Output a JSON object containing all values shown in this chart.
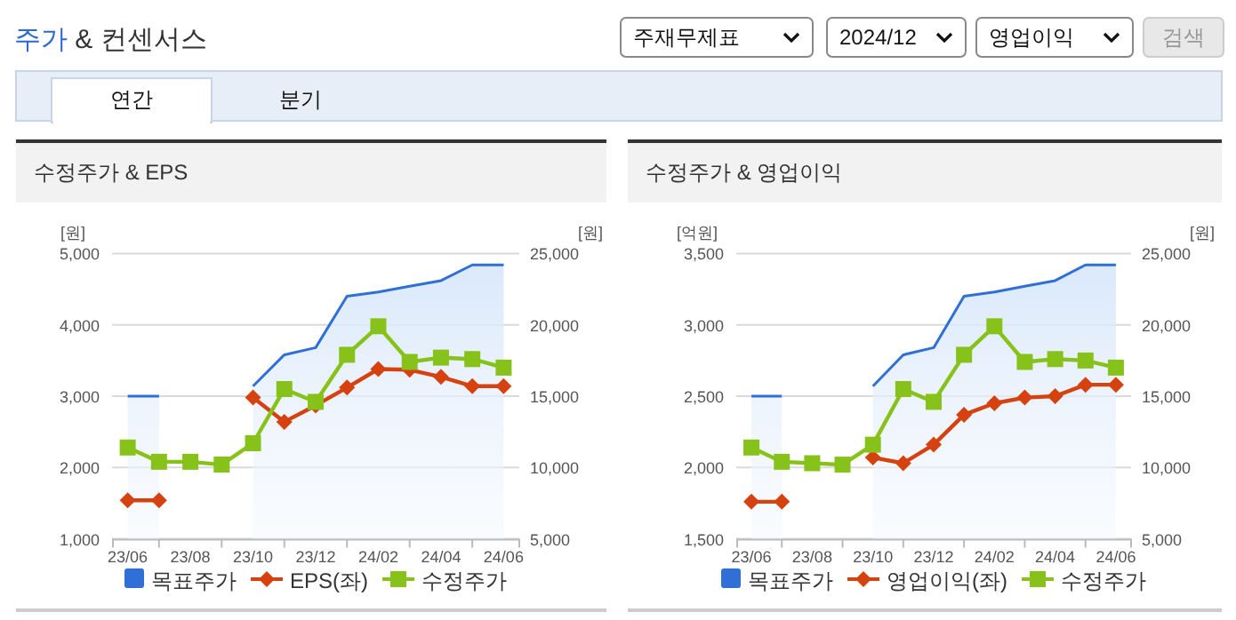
{
  "chart_data": [
    {
      "type": "other",
      "title": "주가 & 컨센서스",
      "annotations": [
        "주재무제표",
        "2024/12",
        "영업이익",
        "검색",
        "연간",
        "분기"
      ]
    },
    {
      "type": "line",
      "title": "수정주가 & EPS",
      "ylabel": "[원]",
      "y2label": "[원]",
      "categories": [
        "23/06",
        null,
        "23/08",
        null,
        "23/10",
        null,
        "23/12",
        null,
        "24/02",
        null,
        "24/04",
        null,
        "24/06"
      ],
      "ylim": [
        1000,
        5000
      ],
      "yticks": [
        {
          "value": 1000,
          "label": "1,000"
        },
        {
          "value": 2000,
          "label": "2,000"
        },
        {
          "value": 3000,
          "label": "3,000"
        },
        {
          "value": 4000,
          "label": "4,000"
        },
        {
          "value": 5000,
          "label": "5,000"
        }
      ],
      "y2lim": [
        5000,
        25000
      ],
      "y2ticks": [
        {
          "value": 5000,
          "label": "5,000"
        },
        {
          "value": 10000,
          "label": "10,000"
        },
        {
          "value": 15000,
          "label": "15,000"
        },
        {
          "value": 20000,
          "label": "20,000"
        },
        {
          "value": 25000,
          "label": "25,000"
        }
      ],
      "grid": "y",
      "legend": "bottom",
      "series": [
        {
          "name": "목표주가",
          "type": "area",
          "axis": "y2",
          "color": "#2f6fd6",
          "values": [
            15000,
            15000,
            null,
            null,
            15700,
            17900,
            18400,
            22000,
            22300,
            22700,
            23100,
            24200,
            24200
          ]
        },
        {
          "name": "EPS(좌)",
          "color": "#d5420f",
          "marker": "diamond",
          "values": [
            1540,
            1540,
            null,
            null,
            2980,
            2640,
            2870,
            3120,
            3380,
            3370,
            3270,
            3140,
            3140
          ]
        },
        {
          "name": "수정주가",
          "axis": "y2",
          "color": "#86c21a",
          "marker": "square",
          "values": [
            11400,
            10400,
            10400,
            10200,
            11700,
            15500,
            14600,
            17900,
            19900,
            17400,
            17700,
            17600,
            17000
          ]
        }
      ]
    },
    {
      "type": "line",
      "title": "수정주가 & 영업이익",
      "ylabel": "[억원]",
      "y2label": "[원]",
      "categories": [
        "23/06",
        null,
        "23/08",
        null,
        "23/10",
        null,
        "23/12",
        null,
        "24/02",
        null,
        "24/04",
        null,
        "24/06"
      ],
      "ylim": [
        1500,
        3500
      ],
      "yticks": [
        {
          "value": 1500,
          "label": "1,500"
        },
        {
          "value": 2000,
          "label": "2,000"
        },
        {
          "value": 2500,
          "label": "2,500"
        },
        {
          "value": 3000,
          "label": "3,000"
        },
        {
          "value": 3500,
          "label": "3,500"
        }
      ],
      "y2lim": [
        5000,
        25000
      ],
      "y2ticks": [
        {
          "value": 5000,
          "label": "5,000"
        },
        {
          "value": 10000,
          "label": "10,000"
        },
        {
          "value": 15000,
          "label": "15,000"
        },
        {
          "value": 20000,
          "label": "20,000"
        },
        {
          "value": 25000,
          "label": "25,000"
        }
      ],
      "grid": "y",
      "legend": "bottom",
      "series": [
        {
          "name": "목표주가",
          "type": "area",
          "axis": "y2",
          "color": "#2f6fd6",
          "values": [
            15000,
            15000,
            null,
            null,
            15700,
            17900,
            18400,
            22000,
            22300,
            22700,
            23100,
            24200,
            24200
          ]
        },
        {
          "name": "영업이익(좌)",
          "color": "#d5420f",
          "marker": "diamond",
          "values": [
            1760,
            1760,
            null,
            null,
            2070,
            2030,
            2160,
            2370,
            2450,
            2490,
            2500,
            2580,
            2580
          ]
        },
        {
          "name": "수정주가",
          "axis": "y2",
          "color": "#86c21a",
          "marker": "square",
          "values": [
            11400,
            10400,
            10300,
            10200,
            11600,
            15500,
            14600,
            17900,
            19900,
            17400,
            17600,
            17500,
            17000
          ]
        }
      ]
    }
  ]
}
